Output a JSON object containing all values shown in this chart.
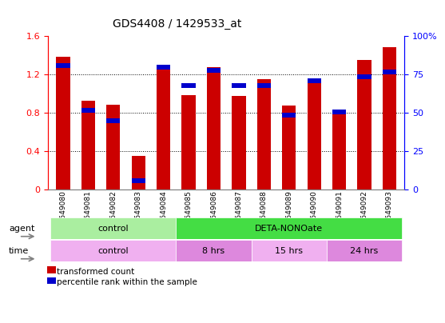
{
  "title": "GDS4408 / 1429533_at",
  "samples": [
    "GSM549080",
    "GSM549081",
    "GSM549082",
    "GSM549083",
    "GSM549084",
    "GSM549085",
    "GSM549086",
    "GSM549087",
    "GSM549088",
    "GSM549089",
    "GSM549090",
    "GSM549091",
    "GSM549092",
    "GSM549093"
  ],
  "red_values": [
    1.38,
    0.92,
    0.88,
    0.35,
    1.28,
    0.98,
    1.27,
    0.97,
    1.15,
    0.87,
    1.15,
    0.82,
    1.35,
    1.48
  ],
  "blue_pct": [
    82,
    53,
    46,
    7,
    81,
    69,
    79,
    69,
    69,
    50,
    72,
    52,
    75,
    78
  ],
  "ylim_left": [
    0,
    1.6
  ],
  "ylim_right": [
    0,
    100
  ],
  "yticks_left": [
    0,
    0.4,
    0.8,
    1.2,
    1.6
  ],
  "ytick_labels_left": [
    "0",
    "0.4",
    "0.8",
    "1.2",
    "1.6"
  ],
  "yticks_right": [
    0,
    25,
    50,
    75,
    100
  ],
  "ytick_labels_right": [
    "0",
    "25",
    "50",
    "75",
    "100%"
  ],
  "bar_width": 0.55,
  "red_color": "#cc0000",
  "blue_color": "#0000cc",
  "title_fontsize": 10,
  "tick_fontsize": 6.5,
  "agent_row": [
    {
      "label": "control",
      "start": 0,
      "end": 5,
      "color": "#aaeea0"
    },
    {
      "label": "DETA-NONOate",
      "start": 5,
      "end": 14,
      "color": "#44dd44"
    }
  ],
  "time_row": [
    {
      "label": "control",
      "start": 0,
      "end": 5,
      "color": "#f0b0f0"
    },
    {
      "label": "8 hrs",
      "start": 5,
      "end": 8,
      "color": "#dd88dd"
    },
    {
      "label": "15 hrs",
      "start": 8,
      "end": 11,
      "color": "#f0b0f0"
    },
    {
      "label": "24 hrs",
      "start": 11,
      "end": 14,
      "color": "#dd88dd"
    }
  ],
  "legend_red_label": "transformed count",
  "legend_blue_label": "percentile rank within the sample",
  "xlabel_agent": "agent",
  "xlabel_time": "time"
}
